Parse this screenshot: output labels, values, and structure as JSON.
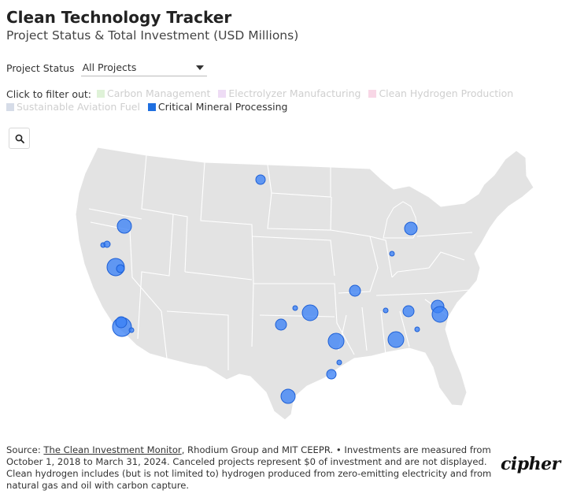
{
  "header": {
    "title": "Clean Technology Tracker",
    "subtitle": "Project Status & Total Investment (USD Millions)"
  },
  "filter": {
    "label": "Project Status",
    "value": "All Projects"
  },
  "legend": {
    "prompt": "Click to filter out:",
    "items": [
      {
        "label": "Carbon Management",
        "color": "#dff2d8",
        "active": false
      },
      {
        "label": "Electrolyzer Manufacturing",
        "color": "#eedcf5",
        "active": false
      },
      {
        "label": "Clean Hydrogen Production",
        "color": "#f8d7e6",
        "active": false
      },
      {
        "label": "Sustainable Aviation Fuel",
        "color": "#d6dce8",
        "active": false
      },
      {
        "label": "Critical Mineral Processing",
        "color": "#1f6fe0",
        "active": true
      }
    ]
  },
  "map": {
    "land_color": "#e3e3e3",
    "border_color": "#ffffff",
    "marker_color": "#3b82f6"
  },
  "footer": {
    "source_prefix": "Source: ",
    "source_link": "The Clean Investment Monitor",
    "source_rest": ", Rhodium Group and MIT CEEPR. • Investments are measured from October 1, 2018 to March 31, 2024. Canceled projects represent $0 of investment and are not displayed. Clean hydrogen includes (but is not limited to) hydrogen produced from zero-emitting electricity and from natural gas and oil with carbon capture.",
    "logo": "cipher"
  }
}
